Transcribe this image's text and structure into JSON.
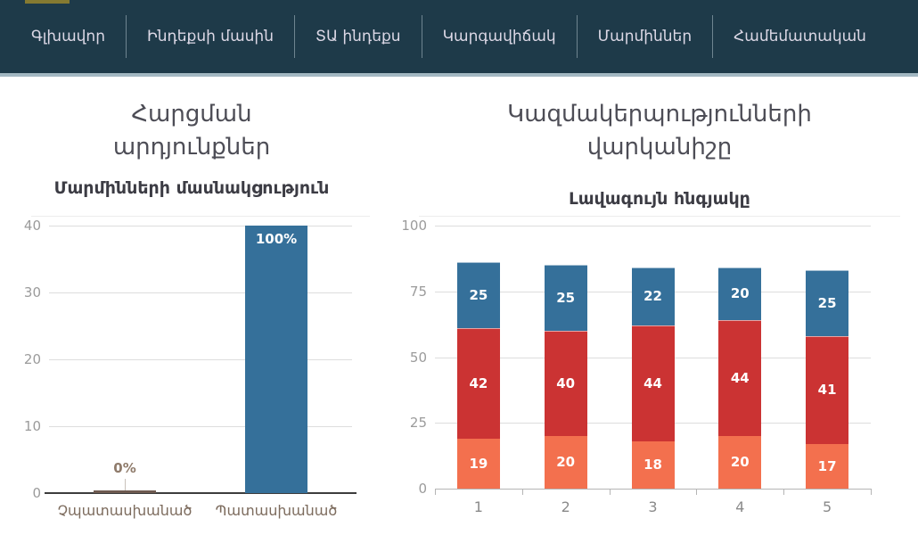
{
  "nav": {
    "items": [
      {
        "label": "Գլխավոր"
      },
      {
        "label": "Ինդեքսի մասին"
      },
      {
        "label": "ՏԱ ինդեքս"
      },
      {
        "label": "Կարգավիճակ"
      },
      {
        "label": "Մարմիններ"
      },
      {
        "label": "Համեմատական"
      }
    ]
  },
  "sections": {
    "left": {
      "title_lines": [
        "Հարցման",
        "արդյունքներ"
      ],
      "subtitle": "Մարմինների մասնակցություն"
    },
    "right": {
      "title_lines": [
        "Կազմակերպությունների",
        "վարկանիշը"
      ],
      "subtitle": "Լավագույն հնգյակը"
    }
  },
  "chart_data": [
    {
      "type": "bar",
      "title": "Մարմինների մասնակցություն",
      "categories": [
        "Չպատասխանած",
        "Պատասխանած"
      ],
      "values": [
        0,
        40
      ],
      "annotations": [
        "0%",
        "100%"
      ],
      "xlabel": "",
      "ylabel": "",
      "ylim": [
        0,
        40
      ],
      "yticks": [
        0,
        10,
        20,
        30,
        40
      ],
      "grid": true,
      "legend": "none",
      "bar_color": "#35709a",
      "zero_bar_color": "#6e5a50",
      "annotation_color_outside": "#8f7b6b",
      "annotation_color_inside": "#ffffff"
    },
    {
      "type": "bar",
      "stacked": true,
      "title": "Լավագույն հնգյակը",
      "categories": [
        "1",
        "2",
        "3",
        "4",
        "5"
      ],
      "series": [
        {
          "name": "bottom",
          "color": "#f3704e",
          "values": [
            19,
            20,
            18,
            20,
            17
          ]
        },
        {
          "name": "middle",
          "color": "#cb3333",
          "values": [
            42,
            40,
            44,
            44,
            41
          ]
        },
        {
          "name": "top",
          "color": "#35709a",
          "values": [
            25,
            25,
            22,
            20,
            25
          ]
        }
      ],
      "totals": [
        86,
        85,
        84,
        84,
        83
      ],
      "xlabel": "",
      "ylabel": "",
      "ylim": [
        0,
        100
      ],
      "yticks": [
        0,
        25,
        50,
        75,
        100
      ],
      "grid": true,
      "legend": "none",
      "value_label_color": "#ffffff"
    }
  ],
  "colors": {
    "page_background": "#ffffff",
    "nav_background": "#1e3a49",
    "nav_text": "#dcd8e6",
    "nav_divider": "#bccdd7",
    "nav_underline": "#a3b8c2",
    "logo_fragment": "#857a31",
    "title_text": "#4d4d56",
    "subtitle_text": "#3c3c44",
    "axis_tick_text": "#9b9b9b",
    "category_text_left": "#7d6c5e",
    "category_text_right": "#8a8a8a",
    "gridline": "#dddddd",
    "axis_line_left": "#3d3d3d",
    "axis_line_right": "#b5b5b5",
    "blue": "#35709a",
    "red": "#cb3333",
    "orange": "#f3704e"
  }
}
